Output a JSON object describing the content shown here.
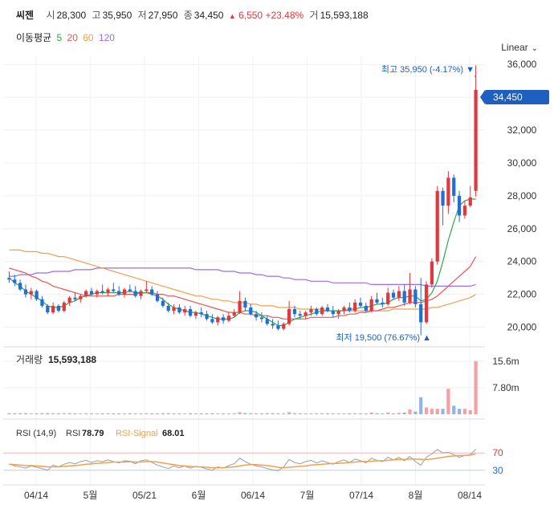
{
  "header": {
    "stock_name": "씨젠",
    "open_label": "시",
    "open": "28,300",
    "high_label": "고",
    "high": "35,950",
    "low_label": "저",
    "low": "27,950",
    "close_label": "종",
    "close": "34,450",
    "change_arrow": "▲",
    "change": "6,550",
    "change_pct": "+23.48%",
    "volume_label": "거",
    "volume": "15,593,188"
  },
  "ma_legend": {
    "label": "이동평균",
    "periods": [
      {
        "label": "5",
        "color": "#2ea84a"
      },
      {
        "label": "20",
        "color": "#ef5350"
      },
      {
        "label": "60",
        "color": "#f0a050"
      },
      {
        "label": "120",
        "color": "#9b6cf0"
      }
    ]
  },
  "scale_mode": "Linear",
  "price_panel": {
    "y_ticks": [
      "36,000",
      "34,000",
      "32,000",
      "30,000",
      "28,000",
      "26,000",
      "24,000",
      "22,000",
      "20,000"
    ],
    "current_price_tag": "34,450",
    "max_annotation": "최고 35,950 (-4.17%) ▼",
    "min_annotation": "최저 19,500 (76.67%) ▲"
  },
  "volume_panel": {
    "label": "거래량",
    "value": "15,593,188",
    "y_ticks": [
      "15.6m",
      "7.80m"
    ]
  },
  "rsi_panel": {
    "label": "RSI (14,9)",
    "rsi_label": "RSI",
    "rsi_value": "78.79",
    "signal_label": "RSI-Signal",
    "signal_value": "68.01",
    "y_ticks": [
      "70",
      "30"
    ]
  },
  "x_axis_labels": [
    "04/14",
    "5월",
    "05/21",
    "6월",
    "06/14",
    "7월",
    "07/14",
    "8월",
    "08/14"
  ],
  "colors": {
    "up": "#e0383e",
    "down": "#1f6fd6",
    "rsi": "#9e9e9e",
    "signal": "#f0a050",
    "tag": "#1f5fc0"
  },
  "chart_data": {
    "type": "candlestick",
    "y_range": [
      19000,
      36500
    ],
    "candles_ohlc": [
      [
        23000,
        23400,
        22700,
        22900
      ],
      [
        22900,
        23200,
        22500,
        22700
      ],
      [
        22700,
        22900,
        22200,
        22300
      ],
      [
        22300,
        22600,
        21800,
        22000
      ],
      [
        22000,
        22400,
        21700,
        22200
      ],
      [
        22200,
        22300,
        21600,
        21700
      ],
      [
        21700,
        21900,
        21200,
        21300
      ],
      [
        21300,
        21400,
        20800,
        20900
      ],
      [
        20900,
        21500,
        20800,
        21300
      ],
      [
        21300,
        21400,
        20900,
        21000
      ],
      [
        21000,
        21600,
        20900,
        21500
      ],
      [
        21500,
        21900,
        21300,
        21800
      ],
      [
        21800,
        22100,
        21600,
        21700
      ],
      [
        21700,
        22000,
        21500,
        21900
      ],
      [
        21900,
        22300,
        21800,
        22200
      ],
      [
        22200,
        22400,
        21900,
        22000
      ],
      [
        22000,
        22300,
        21800,
        22200
      ],
      [
        22200,
        22600,
        22000,
        22100
      ],
      [
        22100,
        22400,
        21900,
        22300
      ],
      [
        22300,
        22700,
        22100,
        22200
      ],
      [
        22200,
        22500,
        21900,
        22000
      ],
      [
        22000,
        22400,
        21800,
        22300
      ],
      [
        22300,
        22600,
        22100,
        22200
      ],
      [
        22200,
        22500,
        21800,
        21900
      ],
      [
        21900,
        22300,
        21700,
        22200
      ],
      [
        22200,
        22800,
        22100,
        22300
      ],
      [
        22300,
        22500,
        21900,
        22000
      ],
      [
        22000,
        22200,
        21500,
        21600
      ],
      [
        21600,
        21800,
        21200,
        21300
      ],
      [
        21300,
        21500,
        20900,
        21000
      ],
      [
        21000,
        21400,
        20800,
        21200
      ],
      [
        21200,
        21400,
        20800,
        20900
      ],
      [
        20900,
        21300,
        20700,
        21100
      ],
      [
        21100,
        21300,
        20600,
        20700
      ],
      [
        20700,
        21000,
        20500,
        20900
      ],
      [
        20900,
        21200,
        20600,
        20800
      ],
      [
        20800,
        21000,
        20400,
        20500
      ],
      [
        20500,
        20800,
        20200,
        20300
      ],
      [
        20300,
        20700,
        20100,
        20600
      ],
      [
        20600,
        20800,
        20200,
        20400
      ],
      [
        20400,
        20900,
        20300,
        20700
      ],
      [
        20700,
        21100,
        20600,
        20900
      ],
      [
        20900,
        22200,
        20800,
        21600
      ],
      [
        21600,
        21800,
        21000,
        21200
      ],
      [
        21200,
        21400,
        20700,
        20800
      ],
      [
        20800,
        21000,
        20400,
        20600
      ],
      [
        20600,
        20900,
        20300,
        20500
      ],
      [
        20500,
        20700,
        20100,
        20200
      ],
      [
        20200,
        20500,
        19900,
        20100
      ],
      [
        20100,
        20400,
        19800,
        19900
      ],
      [
        19900,
        20300,
        19800,
        20200
      ],
      [
        20200,
        21600,
        20100,
        21100
      ],
      [
        21100,
        21300,
        20600,
        20800
      ],
      [
        20800,
        21000,
        20500,
        20700
      ],
      [
        20700,
        21000,
        20500,
        20900
      ],
      [
        20900,
        21300,
        20700,
        21100
      ],
      [
        21100,
        21200,
        20700,
        20800
      ],
      [
        20800,
        21300,
        20700,
        21200
      ],
      [
        21200,
        21400,
        20900,
        21000
      ],
      [
        21000,
        21300,
        20600,
        20800
      ],
      [
        20800,
        21100,
        20500,
        21000
      ],
      [
        21000,
        21300,
        20800,
        21200
      ],
      [
        21200,
        21500,
        20900,
        21000
      ],
      [
        21000,
        21700,
        20900,
        21500
      ],
      [
        21500,
        21800,
        21200,
        21300
      ],
      [
        21300,
        21500,
        20900,
        21000
      ],
      [
        21000,
        21900,
        20900,
        21700
      ],
      [
        21700,
        22100,
        21400,
        21500
      ],
      [
        21500,
        21800,
        21200,
        21400
      ],
      [
        21400,
        22400,
        21300,
        22100
      ],
      [
        22100,
        22300,
        21700,
        21800
      ],
      [
        21800,
        22500,
        21600,
        22200
      ],
      [
        22200,
        22600,
        21300,
        21500
      ],
      [
        21500,
        23300,
        21400,
        22300
      ],
      [
        22300,
        22500,
        21200,
        21400
      ],
      [
        21400,
        23000,
        19500,
        20300
      ],
      [
        20300,
        22800,
        20200,
        22600
      ],
      [
        22600,
        24200,
        22400,
        24000
      ],
      [
        24000,
        28600,
        23800,
        28300
      ],
      [
        28300,
        28500,
        26200,
        27400
      ],
      [
        27400,
        29500,
        26900,
        29100
      ],
      [
        29100,
        29300,
        27600,
        28000
      ],
      [
        28000,
        28300,
        26400,
        26800
      ],
      [
        26800,
        27700,
        26600,
        27400
      ],
      [
        27400,
        28600,
        27300,
        27900
      ],
      [
        28300,
        35950,
        27950,
        34450
      ]
    ],
    "volume_millions": [
      0.3,
      0.25,
      0.3,
      0.3,
      0.25,
      0.25,
      0.3,
      0.35,
      0.3,
      0.25,
      0.3,
      0.3,
      0.25,
      0.25,
      0.3,
      0.25,
      0.25,
      0.25,
      0.3,
      0.25,
      0.25,
      0.25,
      0.3,
      0.25,
      0.25,
      0.3,
      0.25,
      0.25,
      0.3,
      0.3,
      0.25,
      0.25,
      0.25,
      0.3,
      0.25,
      0.25,
      0.25,
      0.3,
      0.25,
      0.25,
      0.25,
      0.3,
      0.6,
      0.35,
      0.3,
      0.25,
      0.25,
      0.3,
      0.3,
      0.25,
      0.25,
      0.6,
      0.3,
      0.25,
      0.25,
      0.25,
      0.25,
      0.3,
      0.25,
      0.25,
      0.25,
      0.25,
      0.25,
      0.3,
      0.25,
      0.25,
      0.5,
      0.3,
      0.25,
      0.5,
      0.25,
      0.4,
      0.5,
      1.4,
      0.8,
      5.0,
      2.0,
      1.6,
      1.6,
      1.6,
      7.5,
      2.5,
      1.6,
      1.6,
      1.2,
      15.6
    ],
    "ma5": [
      23000,
      22700,
      22500,
      22200,
      22000,
      21800,
      21600,
      21300,
      21200,
      21200,
      21300,
      21500,
      21600,
      21800,
      21900,
      22000,
      22100,
      22100,
      22100,
      22100,
      22100,
      22100,
      22200,
      22100,
      22100,
      22100,
      22000,
      21900,
      21700,
      21400,
      21200,
      21100,
      21000,
      20900,
      20900,
      20800,
      20700,
      20600,
      20500,
      20500,
      20500,
      20600,
      20900,
      21000,
      21000,
      20900,
      20700,
      20500,
      20300,
      20100,
      20100,
      20300,
      20500,
      20600,
      20700,
      20800,
      20900,
      21000,
      21000,
      21000,
      21000,
      21000,
      21100,
      21100,
      21200,
      21200,
      21300,
      21400,
      21400,
      21500,
      21700,
      21800,
      21800,
      21900,
      21900,
      21600,
      21700,
      22100,
      22800,
      24000,
      25300,
      26400,
      27400,
      27700,
      27800,
      27800
    ],
    "ma20": [
      23600,
      23500,
      23400,
      23300,
      23100,
      23000,
      22800,
      22700,
      22500,
      22400,
      22300,
      22200,
      22100,
      22000,
      21900,
      21900,
      21900,
      21900,
      21900,
      21900,
      22000,
      22000,
      22000,
      22000,
      22100,
      22100,
      22100,
      22000,
      22000,
      21900,
      21900,
      21800,
      21700,
      21600,
      21500,
      21400,
      21300,
      21200,
      21100,
      21000,
      20900,
      20900,
      20900,
      20800,
      20800,
      20700,
      20700,
      20700,
      20600,
      20600,
      20500,
      20500,
      20500,
      20500,
      20500,
      20600,
      20600,
      20600,
      20600,
      20600,
      20700,
      20700,
      20800,
      20800,
      20900,
      20900,
      21000,
      21000,
      21100,
      21200,
      21200,
      21300,
      21400,
      21500,
      21500,
      21500,
      21600,
      21700,
      21900,
      22200,
      22500,
      22800,
      23100,
      23400,
      23700,
      24300
    ],
    "ma60": [
      24700,
      24700,
      24700,
      24600,
      24600,
      24600,
      24500,
      24500,
      24400,
      24300,
      24300,
      24200,
      24100,
      24000,
      23900,
      23800,
      23700,
      23600,
      23500,
      23400,
      23300,
      23200,
      23100,
      23000,
      22900,
      22800,
      22700,
      22600,
      22500,
      22400,
      22300,
      22200,
      22100,
      22000,
      21900,
      21900,
      21800,
      21700,
      21700,
      21600,
      21600,
      21500,
      21500,
      21500,
      21400,
      21400,
      21300,
      21300,
      21300,
      21200,
      21200,
      21200,
      21200,
      21100,
      21100,
      21100,
      21100,
      21100,
      21000,
      21000,
      21000,
      21000,
      21000,
      21000,
      21000,
      21000,
      21000,
      21000,
      21000,
      21000,
      21100,
      21100,
      21100,
      21100,
      21100,
      21100,
      21100,
      21200,
      21200,
      21300,
      21400,
      21500,
      21600,
      21700,
      21800,
      22000
    ],
    "ma120": [
      23100,
      23100,
      23200,
      23200,
      23200,
      23300,
      23300,
      23300,
      23400,
      23400,
      23400,
      23400,
      23500,
      23500,
      23500,
      23500,
      23600,
      23600,
      23600,
      23600,
      23600,
      23600,
      23600,
      23600,
      23600,
      23600,
      23600,
      23600,
      23600,
      23600,
      23600,
      23600,
      23600,
      23600,
      23500,
      23500,
      23500,
      23500,
      23500,
      23400,
      23400,
      23400,
      23300,
      23300,
      23300,
      23200,
      23200,
      23100,
      23100,
      23100,
      23000,
      23000,
      22900,
      22900,
      22900,
      22800,
      22800,
      22800,
      22800,
      22700,
      22700,
      22700,
      22700,
      22700,
      22700,
      22700,
      22600,
      22600,
      22600,
      22600,
      22600,
      22600,
      22600,
      22600,
      22600,
      22600,
      22500,
      22500,
      22500,
      22500,
      22500,
      22500,
      22500,
      22500,
      22500,
      22600
    ],
    "rsi": [
      45,
      40,
      38,
      35,
      40,
      37,
      34,
      30,
      42,
      38,
      44,
      48,
      45,
      50,
      53,
      48,
      52,
      50,
      54,
      50,
      47,
      52,
      51,
      45,
      52,
      54,
      48,
      42,
      38,
      34,
      40,
      36,
      40,
      35,
      39,
      37,
      33,
      30,
      38,
      35,
      41,
      45,
      58,
      50,
      44,
      40,
      38,
      34,
      31,
      29,
      38,
      55,
      48,
      45,
      50,
      53,
      47,
      52,
      48,
      44,
      50,
      54,
      48,
      56,
      52,
      47,
      58,
      53,
      50,
      60,
      54,
      60,
      52,
      62,
      50,
      42,
      60,
      68,
      78,
      70,
      72,
      66,
      60,
      64,
      66,
      78.79
    ],
    "rsi_signal": [
      44,
      43,
      42,
      41,
      41,
      40,
      39,
      38,
      38,
      38,
      39,
      40,
      41,
      42,
      44,
      45,
      46,
      47,
      48,
      49,
      49,
      49,
      50,
      49,
      49,
      50,
      50,
      49,
      47,
      45,
      43,
      41,
      40,
      39,
      38,
      38,
      37,
      36,
      36,
      36,
      37,
      38,
      40,
      42,
      43,
      43,
      42,
      41,
      39,
      37,
      36,
      37,
      38,
      39,
      40,
      42,
      43,
      44,
      45,
      46,
      46,
      47,
      48,
      49,
      50,
      50,
      51,
      52,
      52,
      53,
      54,
      55,
      55,
      56,
      56,
      55,
      55,
      56,
      58,
      60,
      62,
      63,
      64,
      64,
      65,
      68.01
    ]
  }
}
